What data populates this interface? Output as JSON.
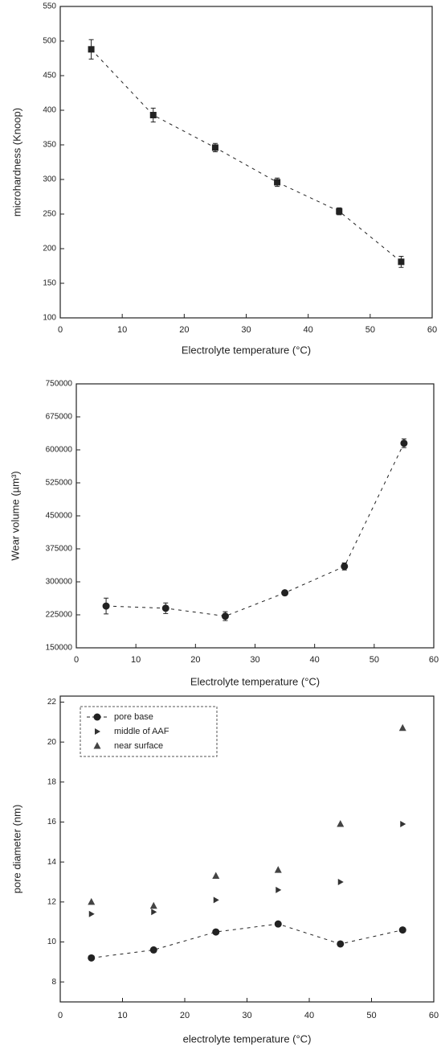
{
  "chart_data": [
    {
      "type": "scatter",
      "ylabel": "microhardness (Knoop)",
      "xlabel": "Electrolyte temperature (°C)",
      "x": [
        5,
        15,
        25,
        35,
        45,
        55
      ],
      "values": [
        488,
        393,
        346,
        296,
        254,
        181
      ],
      "errors": [
        14,
        10,
        6,
        6,
        5,
        8
      ],
      "color": "#222222",
      "line": true,
      "xlim": [
        0,
        60
      ],
      "xticks": [
        0,
        10,
        20,
        30,
        40,
        50,
        60
      ],
      "ylim": [
        100,
        550
      ],
      "yticks": [
        100,
        150,
        200,
        250,
        300,
        350,
        400,
        450,
        500,
        550
      ]
    },
    {
      "type": "scatter",
      "ylabel": "Wear volume (µm³)",
      "xlabel": "Electrolyte temperature (°C)",
      "x": [
        5,
        15,
        25,
        35,
        45,
        55
      ],
      "values": [
        245000,
        240000,
        222000,
        275000,
        335000,
        615000
      ],
      "errors": [
        18000,
        12000,
        10000,
        5000,
        8000,
        10000
      ],
      "color": "#222222",
      "line": true,
      "xlim": [
        0,
        60
      ],
      "xticks": [
        0,
        10,
        20,
        30,
        40,
        50,
        60
      ],
      "ylim": [
        150000,
        750000
      ],
      "yticks": [
        150000,
        225000,
        300000,
        375000,
        450000,
        525000,
        600000,
        675000,
        750000
      ]
    },
    {
      "type": "scatter",
      "ylabel": "pore diameter (nm)",
      "xlabel": "electrolyte temperature (°C)",
      "x": [
        5,
        15,
        25,
        35,
        45,
        55
      ],
      "series": [
        {
          "name": "pore base",
          "color": "#222222",
          "values": [
            9.2,
            9.6,
            10.5,
            10.9,
            9.9,
            10.6
          ],
          "line": true
        },
        {
          "name": "middle of AAF",
          "color": "#333333",
          "values": [
            11.4,
            11.5,
            12.1,
            12.6,
            13.0,
            15.9
          ],
          "line": false
        },
        {
          "name": "near surface",
          "color": "#444444",
          "values": [
            12.0,
            11.8,
            13.3,
            13.6,
            15.9,
            20.7
          ],
          "line": false
        }
      ],
      "legend": "upper left",
      "xlim": [
        0,
        60
      ],
      "xticks": [
        0,
        10,
        20,
        30,
        40,
        50,
        60
      ],
      "ylim": [
        7,
        22.3
      ],
      "yticks": [
        8,
        10,
        12,
        14,
        16,
        18,
        20,
        22
      ]
    }
  ]
}
